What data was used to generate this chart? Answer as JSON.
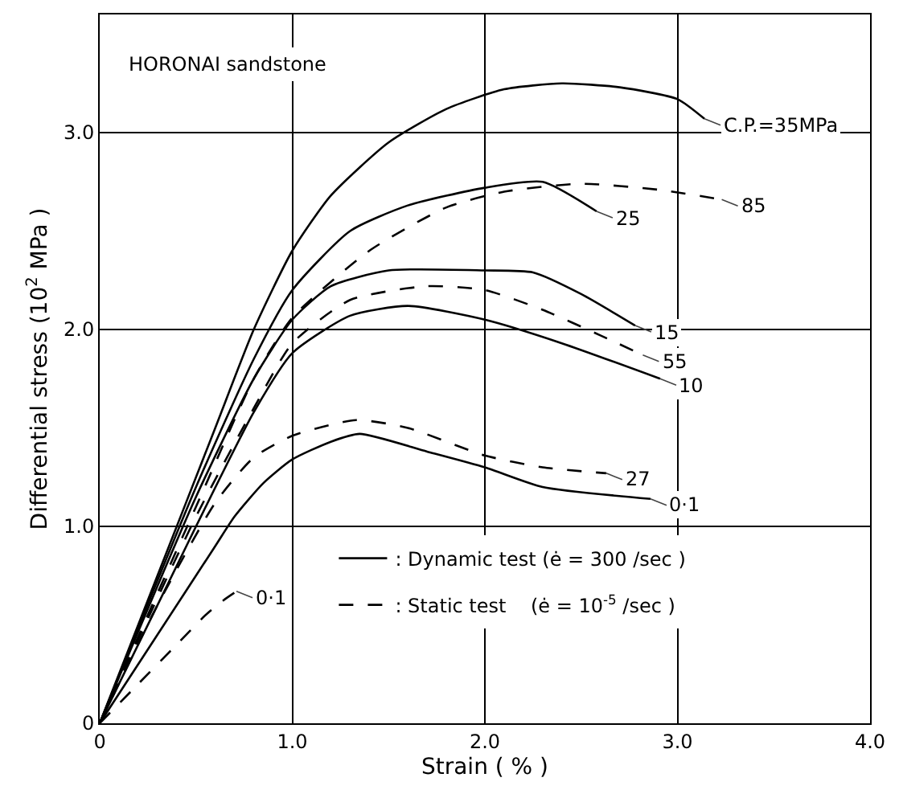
{
  "chart_data": {
    "type": "line",
    "xlabel": "Strain ( % )",
    "ylabel": "Differential stress (10$^{2}$ MPa )",
    "xlim": [
      0,
      4.0
    ],
    "ylim": [
      0,
      3.6
    ],
    "xticks": [
      0,
      {
        "value": 1,
        "label": "1.0"
      },
      {
        "value": 2,
        "label": "2.0"
      },
      {
        "value": 3,
        "label": "3.0"
      },
      {
        "value": 4,
        "label": "4.0"
      }
    ],
    "yticks": [
      0,
      {
        "value": 1,
        "label": "1.0"
      },
      {
        "value": 2,
        "label": "2.0"
      },
      {
        "value": 3,
        "label": "3.0"
      }
    ],
    "grid": true,
    "legend": "bottom",
    "marker": "none",
    "series": [
      {
        "name": ": Dynamic test (ė = 300 /sec )",
        "color": "#000000",
        "line_style": "solid",
        "x": [
          0,
          0.3,
          0.6,
          0.8,
          1.0,
          1.2,
          1.5,
          1.8,
          2.1,
          2.4,
          2.7,
          3.0,
          3.14
        ],
        "values": [
          0,
          0.75,
          1.5,
          2.0,
          2.4,
          2.68,
          2.95,
          3.12,
          3.22,
          3.25,
          3.23,
          3.17,
          3.07
        ]
      },
      {
        "color": "#000000",
        "line_style": "solid",
        "x": [
          0,
          0.5,
          0.8,
          1.0,
          1.3,
          1.6,
          2.0,
          2.3,
          2.58
        ],
        "values": [
          0,
          1.2,
          1.85,
          2.2,
          2.5,
          2.63,
          2.72,
          2.75,
          2.6
        ]
      },
      {
        "color": "#000000",
        "line_style": "solid",
        "x": [
          0,
          0.5,
          0.8,
          1.0,
          1.2,
          1.5,
          2.0,
          2.25,
          2.5,
          2.78
        ],
        "values": [
          0,
          1.15,
          1.75,
          2.05,
          2.22,
          2.3,
          2.3,
          2.29,
          2.18,
          2.02
        ]
      },
      {
        "color": "#000000",
        "line_style": "solid",
        "x": [
          0,
          0.5,
          0.8,
          1.0,
          1.3,
          1.6,
          2.0,
          2.4,
          2.91
        ],
        "values": [
          0,
          1.0,
          1.58,
          1.88,
          2.07,
          2.12,
          2.05,
          1.93,
          1.75
        ]
      },
      {
        "color": "#000000",
        "line_style": "solid",
        "x": [
          0,
          0.3,
          0.6,
          0.7,
          0.85,
          1.0,
          1.2,
          1.35,
          1.7,
          2.0,
          2.3,
          2.86
        ],
        "values": [
          0,
          0.45,
          0.9,
          1.05,
          1.22,
          1.34,
          1.43,
          1.47,
          1.38,
          1.3,
          1.2,
          1.14
        ]
      },
      {
        "name": ": Static test    (ė = 10$^{-5}$ /sec )",
        "color": "#000000",
        "line_style": "dashed",
        "x": [
          0,
          0.5,
          0.8,
          1.0,
          1.4,
          1.8,
          2.1,
          2.5,
          2.9,
          3.23
        ],
        "values": [
          0,
          1.1,
          1.75,
          2.06,
          2.4,
          2.62,
          2.7,
          2.74,
          2.71,
          2.66
        ]
      },
      {
        "color": "#000000",
        "line_style": "dashed",
        "x": [
          0,
          0.5,
          0.8,
          1.0,
          1.3,
          1.7,
          2.0,
          2.3,
          2.6,
          2.82
        ],
        "values": [
          0,
          1.05,
          1.6,
          1.93,
          2.15,
          2.22,
          2.2,
          2.1,
          1.97,
          1.87
        ]
      },
      {
        "color": "#000000",
        "line_style": "dashed",
        "x": [
          0,
          0.3,
          0.6,
          0.8,
          1.0,
          1.33,
          1.6,
          2.0,
          2.3,
          2.63
        ],
        "values": [
          0,
          0.6,
          1.12,
          1.35,
          1.46,
          1.54,
          1.5,
          1.36,
          1.3,
          1.27
        ]
      },
      {
        "color": "#000000",
        "line_style": "dashed",
        "x": [
          0,
          0.2,
          0.4,
          0.55,
          0.65,
          0.71
        ],
        "values": [
          0,
          0.2,
          0.4,
          0.55,
          0.63,
          0.67
        ]
      }
    ],
    "annotations": [
      "HORONAI sandstone",
      {
        "text": "C.P.=35MPa",
        "x": 3.14,
        "y": 3.07
      },
      {
        "text": "25",
        "x": 2.58,
        "y": 2.6
      },
      {
        "text": "85",
        "x": 3.23,
        "y": 2.66
      },
      {
        "text": "15",
        "x": 2.78,
        "y": 2.02
      },
      {
        "text": "55",
        "x": 2.82,
        "y": 1.87
      },
      {
        "text": "10",
        "x": 2.91,
        "y": 1.75
      },
      {
        "text": "27",
        "x": 2.63,
        "y": 1.27
      },
      {
        "text": "0·1",
        "x": 2.86,
        "y": 1.14
      },
      {
        "text": "0·1",
        "x": 0.71,
        "y": 0.67
      }
    ]
  }
}
